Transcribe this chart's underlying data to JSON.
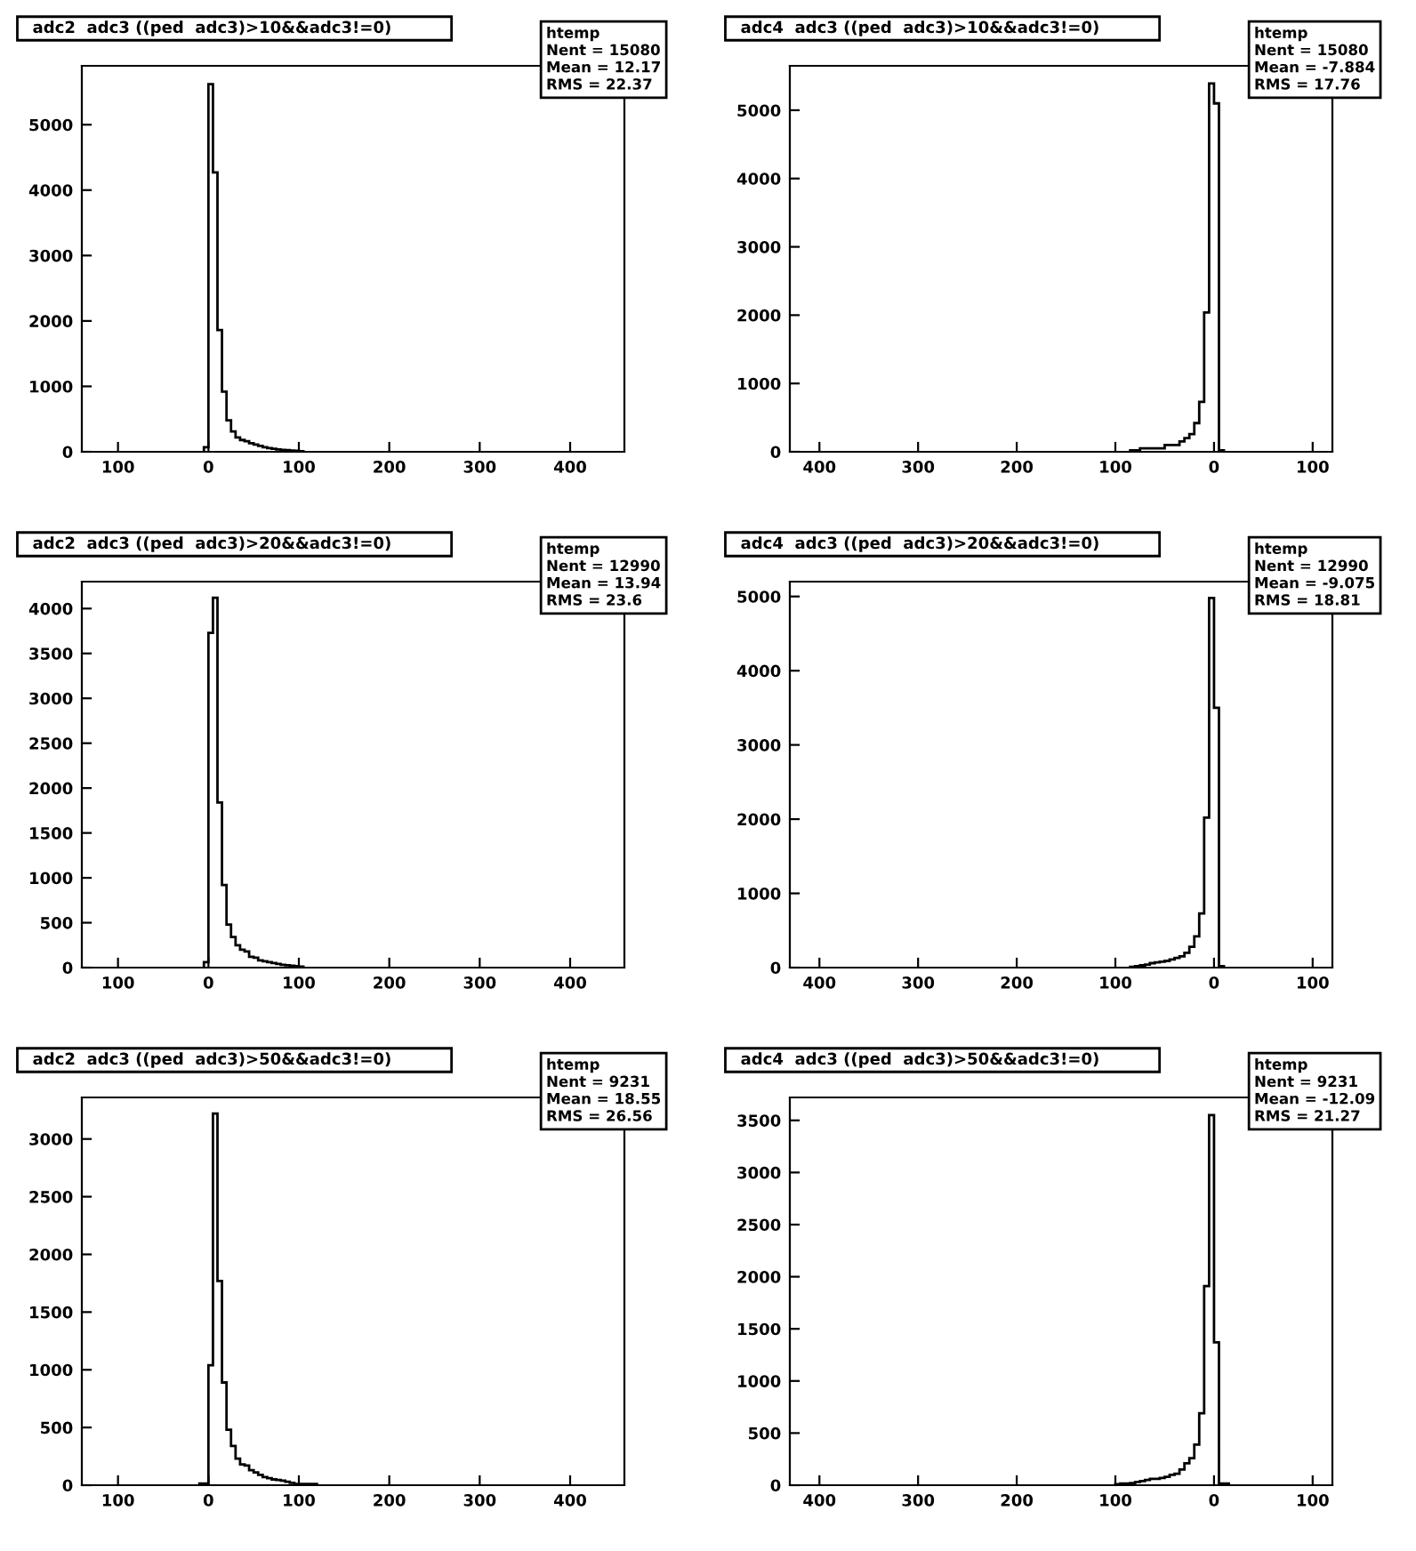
{
  "chart_data": [
    {
      "type": "histogram",
      "title": "adc2  adc3 ((ped  adc3)>10&&adc3!=0)",
      "annotations": [
        "htemp",
        "Nent = 15080",
        "Mean = 12.17",
        "RMS = 22.37"
      ],
      "color": "#000000",
      "grid": false,
      "legend": false,
      "bins": [
        -5,
        0,
        5,
        10,
        15,
        20,
        25,
        30,
        35,
        40,
        45,
        50,
        55,
        60,
        65,
        70,
        75,
        80,
        85,
        90,
        95,
        100,
        105
      ],
      "values": [
        70,
        5620,
        4270,
        1860,
        920,
        480,
        310,
        220,
        180,
        160,
        130,
        110,
        90,
        70,
        55,
        45,
        35,
        30,
        25,
        20,
        15,
        10
      ],
      "xlim": [
        -140,
        460
      ],
      "xticks": [
        {
          "value": -100,
          "label": "100"
        },
        0,
        100,
        200,
        300,
        400
      ],
      "ylim": [
        0,
        5900
      ],
      "yticks": [
        0,
        1000,
        2000,
        3000,
        4000,
        5000
      ]
    },
    {
      "type": "histogram",
      "title": "adc4  adc3 ((ped  adc3)>10&&adc3!=0)",
      "annotations": [
        "htemp",
        "Nent = 15080",
        "Mean = -7.884",
        "RMS = 17.76"
      ],
      "color": "#000000",
      "grid": false,
      "legend": false,
      "bins": [
        -85,
        -80,
        -75,
        -70,
        -65,
        -60,
        -55,
        -50,
        -45,
        -40,
        -35,
        -30,
        -25,
        -20,
        -15,
        -10,
        -5,
        0,
        5,
        10
      ],
      "values": [
        20,
        20,
        50,
        50,
        50,
        50,
        50,
        100,
        100,
        100,
        150,
        200,
        260,
        420,
        730,
        2040,
        5390,
        5100,
        20
      ],
      "xlim": [
        -430,
        120
      ],
      "xticks": [
        {
          "value": -400,
          "label": "400"
        },
        {
          "value": -300,
          "label": "300"
        },
        {
          "value": -200,
          "label": "200"
        },
        {
          "value": -100,
          "label": "100"
        },
        0,
        100
      ],
      "ylim": [
        0,
        5650
      ],
      "yticks": [
        0,
        1000,
        2000,
        3000,
        4000,
        5000
      ]
    },
    {
      "type": "histogram",
      "title": "adc2  adc3 ((ped  adc3)>20&&adc3!=0)",
      "annotations": [
        "htemp",
        "Nent = 12990",
        "Mean = 13.94",
        "RMS = 23.6"
      ],
      "color": "#000000",
      "grid": false,
      "legend": false,
      "bins": [
        -5,
        0,
        5,
        10,
        15,
        20,
        25,
        30,
        35,
        40,
        45,
        50,
        55,
        60,
        65,
        70,
        75,
        80,
        85,
        90,
        95,
        100,
        105
      ],
      "values": [
        60,
        3730,
        4120,
        1840,
        920,
        480,
        340,
        250,
        200,
        180,
        120,
        110,
        80,
        70,
        60,
        50,
        40,
        30,
        25,
        20,
        15,
        10
      ],
      "xlim": [
        -140,
        460
      ],
      "xticks": [
        {
          "value": -100,
          "label": "100"
        },
        0,
        100,
        200,
        300,
        400
      ],
      "ylim": [
        0,
        4300
      ],
      "yticks": [
        0,
        500,
        1000,
        1500,
        2000,
        2500,
        3000,
        3500,
        4000
      ]
    },
    {
      "type": "histogram",
      "title": "adc4  adc3 ((ped  adc3)>20&&adc3!=0)",
      "annotations": [
        "htemp",
        "Nent = 12990",
        "Mean = -9.075",
        "RMS = 18.81"
      ],
      "color": "#000000",
      "grid": false,
      "legend": false,
      "bins": [
        -85,
        -80,
        -75,
        -70,
        -65,
        -60,
        -55,
        -50,
        -45,
        -40,
        -35,
        -30,
        -25,
        -20,
        -15,
        -10,
        -5,
        0,
        5,
        10
      ],
      "values": [
        10,
        20,
        30,
        40,
        60,
        70,
        80,
        90,
        110,
        130,
        150,
        200,
        280,
        420,
        730,
        2020,
        4980,
        3500,
        20
      ],
      "xlim": [
        -430,
        120
      ],
      "xticks": [
        {
          "value": -400,
          "label": "400"
        },
        {
          "value": -300,
          "label": "300"
        },
        {
          "value": -200,
          "label": "200"
        },
        {
          "value": -100,
          "label": "100"
        },
        0,
        100
      ],
      "ylim": [
        0,
        5200
      ],
      "yticks": [
        0,
        1000,
        2000,
        3000,
        4000,
        5000
      ]
    },
    {
      "type": "histogram",
      "title": "adc2  adc3 ((ped  adc3)>50&&adc3!=0)",
      "annotations": [
        "htemp",
        "Nent = 9231",
        "Mean = 18.55",
        "RMS = 26.56"
      ],
      "color": "#000000",
      "grid": false,
      "legend": false,
      "bins": [
        -10,
        -5,
        0,
        5,
        10,
        15,
        20,
        25,
        30,
        35,
        40,
        45,
        50,
        55,
        60,
        65,
        70,
        75,
        80,
        85,
        90,
        95,
        100,
        105,
        110,
        115,
        120
      ],
      "values": [
        15,
        15,
        1040,
        3220,
        1770,
        890,
        480,
        340,
        230,
        180,
        170,
        130,
        110,
        90,
        70,
        60,
        50,
        45,
        40,
        30,
        20,
        10,
        10,
        10,
        10,
        10
      ],
      "xlim": [
        -140,
        460
      ],
      "xticks": [
        {
          "value": -100,
          "label": "100"
        },
        0,
        100,
        200,
        300,
        400
      ],
      "ylim": [
        0,
        3360
      ],
      "yticks": [
        0,
        500,
        1000,
        1500,
        2000,
        2500,
        3000
      ]
    },
    {
      "type": "histogram",
      "title": "adc4  adc3 ((ped  adc3)>50&&adc3!=0)",
      "annotations": [
        "htemp",
        "Nent = 9231",
        "Mean = -12.09",
        "RMS = 21.27"
      ],
      "color": "#000000",
      "grid": false,
      "legend": false,
      "bins": [
        -100,
        -95,
        -90,
        -85,
        -80,
        -75,
        -70,
        -65,
        -60,
        -55,
        -50,
        -45,
        -40,
        -35,
        -30,
        -25,
        -20,
        -15,
        -10,
        -5,
        0,
        5,
        10,
        15
      ],
      "values": [
        10,
        15,
        15,
        20,
        30,
        40,
        50,
        60,
        60,
        70,
        80,
        100,
        110,
        150,
        210,
        260,
        390,
        690,
        1910,
        3550,
        1370,
        15,
        15
      ],
      "xlim": [
        -430,
        120
      ],
      "xticks": [
        {
          "value": -400,
          "label": "400"
        },
        {
          "value": -300,
          "label": "300"
        },
        {
          "value": -200,
          "label": "200"
        },
        {
          "value": -100,
          "label": "100"
        },
        0,
        100
      ],
      "ylim": [
        0,
        3720
      ],
      "yticks": [
        0,
        500,
        1000,
        1500,
        2000,
        2500,
        3000,
        3500
      ]
    }
  ]
}
